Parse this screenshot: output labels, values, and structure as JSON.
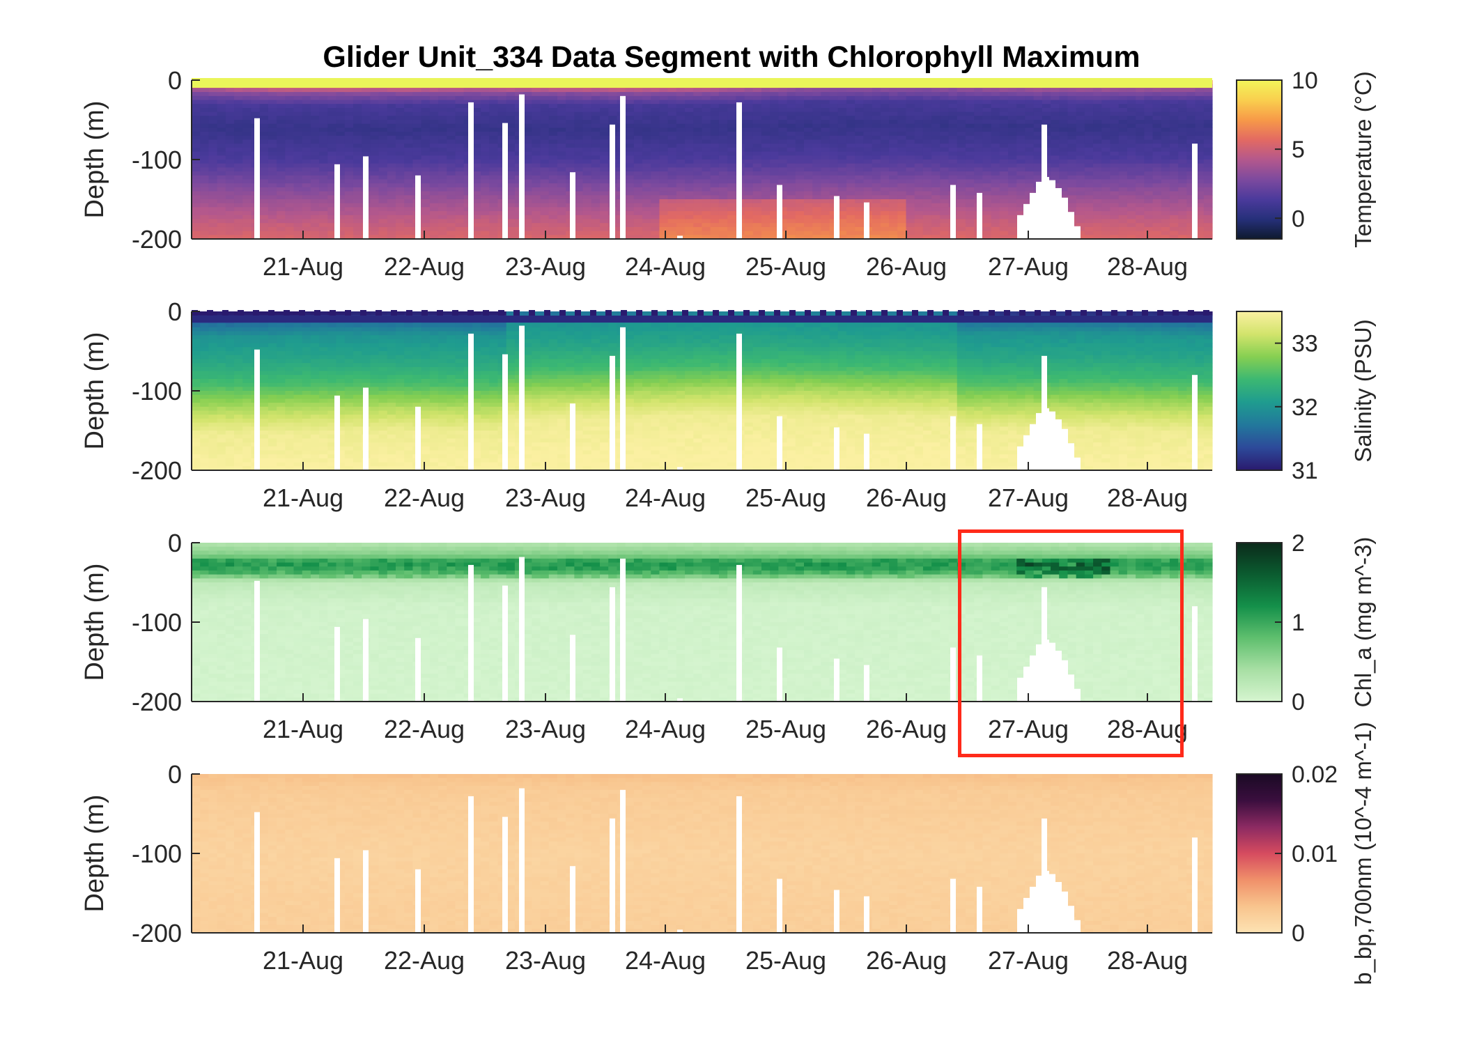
{
  "title": "Glider Unit_334 Data Segment with Chlorophyll Maximum",
  "chart_data": [
    {
      "type": "heatmap",
      "variable": "temperature",
      "ylabel": "Depth (m)",
      "yticks": [
        "0",
        "-100",
        "-200"
      ],
      "ylim": [
        -200,
        0
      ],
      "xticks": [
        "21-Aug",
        "22-Aug",
        "23-Aug",
        "24-Aug",
        "25-Aug",
        "26-Aug",
        "27-Aug",
        "28-Aug"
      ],
      "colorbar_label": "Temperature (°C)",
      "colorbar_ticks": [
        "10",
        "5",
        "0"
      ],
      "colorbar_range": [
        -1.5,
        10
      ],
      "colormap": [
        "#0e1a2e",
        "#26307a",
        "#4b3a9c",
        "#7d4a9e",
        "#b4588c",
        "#e36a62",
        "#f79a48",
        "#f9cf4e",
        "#f2f55a"
      ],
      "profile": {
        "depth": [
          0,
          -5,
          -15,
          -30,
          -60,
          -100,
          -140,
          -180,
          -200
        ],
        "value": [
          9.5,
          6.0,
          3.0,
          1.2,
          0.6,
          1.4,
          3.2,
          4.8,
          5.4
        ]
      }
    },
    {
      "type": "heatmap",
      "variable": "salinity",
      "ylabel": "Depth (m)",
      "yticks": [
        "0",
        "-100",
        "-200"
      ],
      "ylim": [
        -200,
        0
      ],
      "xticks": [
        "21-Aug",
        "22-Aug",
        "23-Aug",
        "24-Aug",
        "25-Aug",
        "26-Aug",
        "27-Aug",
        "28-Aug"
      ],
      "colorbar_label": "Salinity (PSU)",
      "colorbar_ticks": [
        "33",
        "32",
        "31"
      ],
      "colorbar_range": [
        31,
        33.5
      ],
      "colormap": [
        "#2a1a6e",
        "#2d4a9a",
        "#22789c",
        "#1f9c8f",
        "#3cb872",
        "#86cf52",
        "#d2e46c",
        "#fbf0a2"
      ],
      "profile": {
        "depth": [
          0,
          -10,
          -30,
          -60,
          -90,
          -120,
          -150,
          -200
        ],
        "value": [
          31.0,
          31.6,
          32.0,
          32.2,
          32.5,
          33.0,
          33.4,
          33.5
        ]
      }
    },
    {
      "type": "heatmap",
      "variable": "chlorophyll_a",
      "ylabel": "Depth (m)",
      "yticks": [
        "0",
        "-100",
        "-200"
      ],
      "ylim": [
        -200,
        0
      ],
      "xticks": [
        "21-Aug",
        "22-Aug",
        "23-Aug",
        "24-Aug",
        "25-Aug",
        "26-Aug",
        "27-Aug",
        "28-Aug"
      ],
      "colorbar_label": "Chl_a (mg m^-3)",
      "colorbar_ticks": [
        "2",
        "1",
        "0"
      ],
      "colorbar_range": [
        0,
        2
      ],
      "colormap": [
        "#d6f5d0",
        "#a8dfa4",
        "#5fbf6e",
        "#14904a",
        "#0b5c30",
        "#0b2a1a"
      ],
      "profile": {
        "depth": [
          0,
          -15,
          -25,
          -35,
          -50,
          -80,
          -200
        ],
        "value": [
          0.3,
          0.6,
          1.0,
          0.9,
          0.2,
          0.05,
          0.03
        ]
      },
      "highlight_box": [
        "27-Aug",
        "28-Aug"
      ]
    },
    {
      "type": "heatmap",
      "variable": "backscatter",
      "ylabel": "Depth (m)",
      "yticks": [
        "0",
        "-100",
        "-200"
      ],
      "ylim": [
        -200,
        0
      ],
      "xticks": [
        "21-Aug",
        "22-Aug",
        "23-Aug",
        "24-Aug",
        "25-Aug",
        "26-Aug",
        "27-Aug",
        "28-Aug"
      ],
      "colorbar_label": "b_bp,700nm (10^-4 m^-1)",
      "colorbar_ticks": [
        "0.02",
        "0.01",
        "0"
      ],
      "colorbar_range": [
        0,
        0.02
      ],
      "colormap": [
        "#fde3b3",
        "#f8c48d",
        "#f0906a",
        "#d64b5f",
        "#8c2a62",
        "#3a0e3e",
        "#1a0a24"
      ],
      "profile": {
        "depth": [
          0,
          -20,
          -100,
          -200
        ],
        "value": [
          0.0035,
          0.0025,
          0.0018,
          0.0022
        ]
      }
    }
  ]
}
